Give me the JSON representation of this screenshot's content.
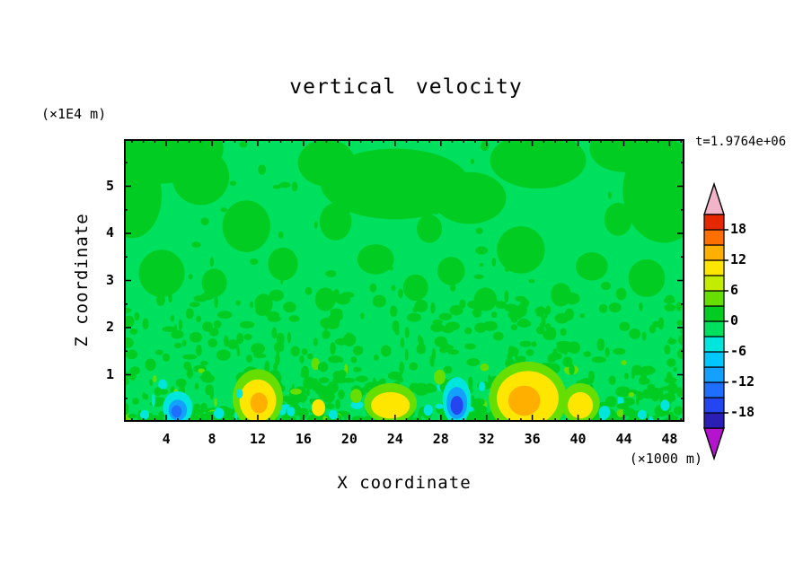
{
  "header": {
    "title": "vertical velocity",
    "timestamp": "t=1.9764e+06"
  },
  "axes": {
    "x": {
      "label": "X coordinate",
      "unit": "(×1000 m)"
    },
    "z": {
      "label": "Z coordinate",
      "unit": "(×1E4 m)"
    }
  },
  "chart_data": {
    "type": "heatmap",
    "title": "vertical velocity",
    "xlabel": "X coordinate",
    "ylabel": "Z coordinate",
    "x_axis": {
      "min": 0.3,
      "max": 49.3,
      "unit": "(×1000 m)",
      "major_ticks": [
        4,
        8,
        12,
        16,
        20,
        24,
        28,
        32,
        36,
        40,
        44,
        48
      ],
      "minor_step": 1
    },
    "z_axis": {
      "min": 0,
      "max": 6,
      "unit": "(×1E4 m)",
      "major_ticks": [
        1,
        2,
        3,
        4,
        5
      ],
      "minor_step": 0.5
    },
    "grid": false,
    "legend_position": "right-colorbar",
    "colorbar": {
      "vmin": -21,
      "vmax": 21,
      "contour_interval": 3,
      "ticks": [
        18,
        12,
        6,
        0,
        -6,
        -12,
        -18
      ],
      "segment_colors_bottom_to_top": [
        "#2A1EB4",
        "#2346F0",
        "#1E6EFF",
        "#14A0FF",
        "#00C8FF",
        "#00E6DC",
        "#00E05F",
        "#00CC22",
        "#66DF00",
        "#C3ED00",
        "#FFE600",
        "#FFAF00",
        "#FF6E00",
        "#E62800"
      ],
      "under_color": "#B414CD",
      "over_color": "#F2B4C8"
    },
    "background_color": "#00E05F",
    "patch_color": "#00CC22",
    "patches": [
      {
        "x": 3,
        "z": 5.8,
        "rx": 6.0,
        "rz": 0.75
      },
      {
        "x": 1,
        "z": 4.8,
        "rx": 2.6,
        "rz": 0.9
      },
      {
        "x": 7,
        "z": 5.2,
        "rx": 2.5,
        "rz": 0.6
      },
      {
        "x": 18,
        "z": 5.5,
        "rx": 2.5,
        "rz": 0.5
      },
      {
        "x": 24,
        "z": 5.05,
        "rx": 6.5,
        "rz": 0.75
      },
      {
        "x": 30.5,
        "z": 4.75,
        "rx": 3.2,
        "rz": 0.55
      },
      {
        "x": 36.5,
        "z": 5.55,
        "rx": 4.2,
        "rz": 0.6
      },
      {
        "x": 44,
        "z": 5.8,
        "rx": 3.0,
        "rz": 0.5
      },
      {
        "x": 47.5,
        "z": 4.9,
        "rx": 3.6,
        "rz": 1.1
      },
      {
        "x": 43.5,
        "z": 4.3,
        "rx": 1.2,
        "rz": 0.35
      },
      {
        "x": 27,
        "z": 4.1,
        "rx": 1.1,
        "rz": 0.3
      },
      {
        "x": 11,
        "z": 4.15,
        "rx": 2.1,
        "rz": 0.55
      },
      {
        "x": 18.8,
        "z": 4.25,
        "rx": 1.4,
        "rz": 0.4
      },
      {
        "x": 3.6,
        "z": 3.15,
        "rx": 2.0,
        "rz": 0.5
      },
      {
        "x": 14.2,
        "z": 3.35,
        "rx": 1.3,
        "rz": 0.35
      },
      {
        "x": 22.3,
        "z": 3.45,
        "rx": 1.6,
        "rz": 0.32
      },
      {
        "x": 28.9,
        "z": 3.2,
        "rx": 1.2,
        "rz": 0.3
      },
      {
        "x": 35,
        "z": 3.65,
        "rx": 2.1,
        "rz": 0.5
      },
      {
        "x": 41.2,
        "z": 3.3,
        "rx": 1.4,
        "rz": 0.3
      },
      {
        "x": 46,
        "z": 3.05,
        "rx": 1.6,
        "rz": 0.4
      },
      {
        "x": 25.8,
        "z": 2.85,
        "rx": 1.1,
        "rz": 0.28
      },
      {
        "x": 8.2,
        "z": 2.95,
        "rx": 1.1,
        "rz": 0.3
      },
      {
        "x": 31.9,
        "z": 2.6,
        "rx": 1.0,
        "rz": 0.25
      },
      {
        "x": 17.9,
        "z": 2.6,
        "rx": 0.9,
        "rz": 0.25
      },
      {
        "x": 12.5,
        "z": 2.5,
        "rx": 0.8,
        "rz": 0.22
      },
      {
        "x": 38.5,
        "z": 2.7,
        "rx": 0.9,
        "rz": 0.25
      }
    ],
    "features": [
      {
        "x": 12,
        "z": 0.5,
        "rx": 2.2,
        "rz": 0.62,
        "c": "#66DF00"
      },
      {
        "x": 12,
        "z": 0.45,
        "rx": 1.6,
        "rz": 0.45,
        "c": "#FFE600"
      },
      {
        "x": 12.1,
        "z": 0.4,
        "rx": 0.75,
        "rz": 0.22,
        "c": "#FFAF00"
      },
      {
        "x": 23.6,
        "z": 0.4,
        "rx": 2.3,
        "rz": 0.42,
        "c": "#66DF00"
      },
      {
        "x": 23.6,
        "z": 0.35,
        "rx": 1.7,
        "rz": 0.28,
        "c": "#FFE600"
      },
      {
        "x": 35.6,
        "z": 0.5,
        "rx": 3.4,
        "rz": 0.78,
        "c": "#66DF00"
      },
      {
        "x": 35.6,
        "z": 0.5,
        "rx": 2.7,
        "rz": 0.58,
        "c": "#FFE600"
      },
      {
        "x": 35.3,
        "z": 0.45,
        "rx": 1.4,
        "rz": 0.32,
        "c": "#FFAF00"
      },
      {
        "x": 40.2,
        "z": 0.4,
        "rx": 1.7,
        "rz": 0.42,
        "c": "#66DF00"
      },
      {
        "x": 40.2,
        "z": 0.35,
        "rx": 1.1,
        "rz": 0.28,
        "c": "#FFE600"
      },
      {
        "x": 17.3,
        "z": 0.3,
        "rx": 0.6,
        "rz": 0.18,
        "c": "#FFE600"
      },
      {
        "x": 27.9,
        "z": 0.95,
        "rx": 0.5,
        "rz": 0.16,
        "c": "#66DF00"
      },
      {
        "x": 20.6,
        "z": 0.55,
        "rx": 0.5,
        "rz": 0.15,
        "c": "#66DF00"
      },
      {
        "x": 5,
        "z": 0.3,
        "rx": 1.3,
        "rz": 0.35,
        "c": "#00E6DC"
      },
      {
        "x": 5,
        "z": 0.25,
        "rx": 0.8,
        "rz": 0.22,
        "c": "#14A0FF"
      },
      {
        "x": 4.9,
        "z": 0.22,
        "rx": 0.45,
        "rz": 0.13,
        "c": "#1E6EFF"
      },
      {
        "x": 29.4,
        "z": 0.45,
        "rx": 1.25,
        "rz": 0.5,
        "c": "#00E6DC"
      },
      {
        "x": 29.4,
        "z": 0.4,
        "rx": 0.9,
        "rz": 0.34,
        "c": "#14A0FF"
      },
      {
        "x": 29.4,
        "z": 0.35,
        "rx": 0.55,
        "rz": 0.2,
        "c": "#2346F0"
      },
      {
        "x": 8.6,
        "z": 0.18,
        "rx": 0.45,
        "rz": 0.12,
        "c": "#00E6DC"
      },
      {
        "x": 14.9,
        "z": 0.22,
        "rx": 0.35,
        "rz": 0.1,
        "c": "#00E6DC"
      },
      {
        "x": 18.6,
        "z": 0.15,
        "rx": 0.4,
        "rz": 0.1,
        "c": "#00E6DC"
      },
      {
        "x": 26.9,
        "z": 0.25,
        "rx": 0.4,
        "rz": 0.12,
        "c": "#00E6DC"
      },
      {
        "x": 31.6,
        "z": 0.75,
        "rx": 0.3,
        "rz": 0.1,
        "c": "#00E6DC"
      },
      {
        "x": 42.3,
        "z": 0.2,
        "rx": 0.5,
        "rz": 0.14,
        "c": "#00E6DC"
      },
      {
        "x": 45.6,
        "z": 0.15,
        "rx": 0.4,
        "rz": 0.1,
        "c": "#00E6DC"
      },
      {
        "x": 47.6,
        "z": 0.35,
        "rx": 0.4,
        "rz": 0.12,
        "c": "#00E6DC"
      },
      {
        "x": 2.1,
        "z": 0.15,
        "rx": 0.4,
        "rz": 0.1,
        "c": "#00E6DC"
      },
      {
        "x": 10.4,
        "z": 0.6,
        "rx": 0.3,
        "rz": 0.1,
        "c": "#00E6DC"
      }
    ],
    "speckle": {
      "seed": 1337,
      "count": 620,
      "z_max": 2.75,
      "z_power": 1.6,
      "size": [
        0.12,
        0.55,
        0.05,
        0.09
      ],
      "upper_count": 55,
      "upper_z": [
        2.75,
        5.9
      ],
      "cyan_fraction": 0.05,
      "yellowgreen_fraction": 0.045,
      "cyan_color": "#00E6DC",
      "yellowgreen_color": "#66DF00"
    }
  }
}
